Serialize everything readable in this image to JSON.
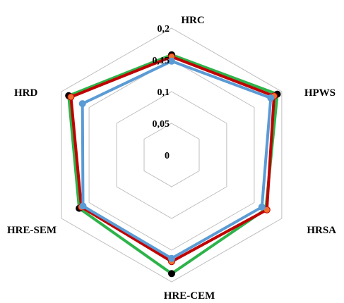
{
  "chart_data": {
    "type": "radar",
    "axes": [
      "HRC",
      "HPWS",
      "HRSA",
      "HRE-CEM",
      "HRE-SEM",
      "HRD"
    ],
    "ticks": [
      "0",
      "0,05",
      "0,1",
      "0,15",
      "0,2"
    ],
    "tick_values": [
      0,
      0.05,
      0.1,
      0.15,
      0.2
    ],
    "range": [
      0,
      0.2
    ],
    "grid": true,
    "legend": "none",
    "series": [
      {
        "color": "#2db34a",
        "marker_color": "#000000",
        "values": [
          0.158,
          0.192,
          0.171,
          0.187,
          0.168,
          0.187
        ]
      },
      {
        "color": "#c00000",
        "marker_color": "#f07030",
        "values": [
          0.155,
          0.186,
          0.173,
          0.168,
          0.164,
          0.183
        ]
      },
      {
        "color": "#5b9bd5",
        "marker_color": "#5b9bd5",
        "values": [
          0.148,
          0.18,
          0.164,
          0.163,
          0.161,
          0.162
        ]
      }
    ]
  }
}
